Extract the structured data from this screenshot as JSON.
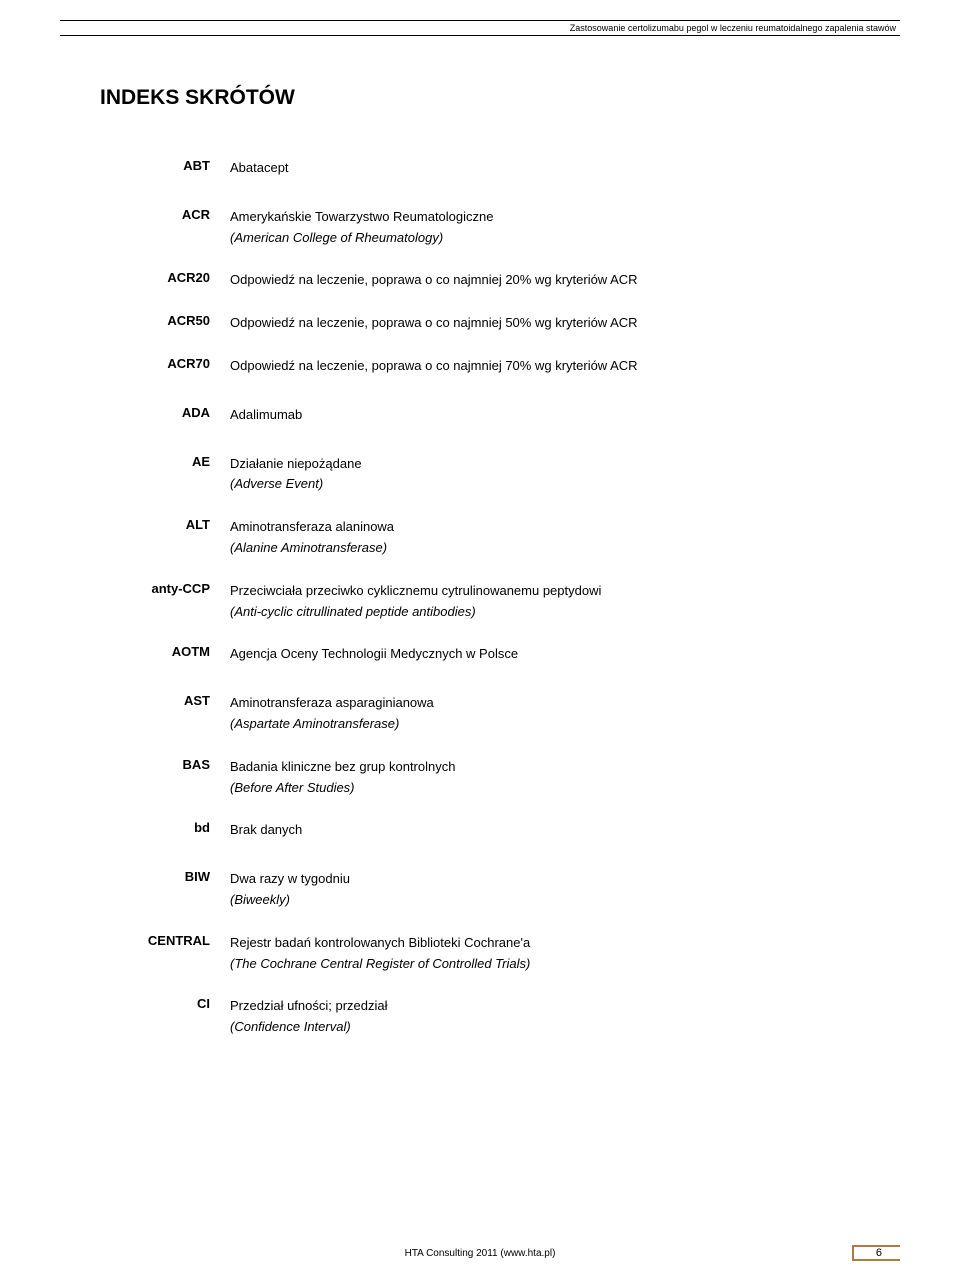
{
  "header": {
    "running_title": "Zastosowanie certolizumabu pegol w leczeniu reumatoidalnego zapalenia stawów"
  },
  "title": "INDEKS SKRÓTÓW",
  "entries": [
    {
      "abbr": "ABT",
      "def": "Abatacept",
      "spaced": false
    },
    {
      "abbr": "ACR",
      "def": "Amerykańskie Towarzystwo Reumatologiczne",
      "sub": "(American College of Rheumatology)",
      "spaced": true
    },
    {
      "abbr": "ACR20",
      "def": "Odpowiedź na leczenie, poprawa o co najmniej 20% wg kryteriów ACR",
      "spaced": false
    },
    {
      "abbr": "ACR50",
      "def": "Odpowiedź na leczenie, poprawa o co najmniej 50% wg kryteriów ACR",
      "spaced": false
    },
    {
      "abbr": "ACR70",
      "def": "Odpowiedź na leczenie, poprawa o co najmniej 70% wg kryteriów ACR",
      "spaced": false
    },
    {
      "abbr": "ADA",
      "def": "Adalimumab",
      "spaced": true
    },
    {
      "abbr": "AE",
      "def": "Działanie niepożądane",
      "sub": "(Adverse Event)",
      "spaced": true
    },
    {
      "abbr": "ALT",
      "def": "Aminotransferaza alaninowa",
      "sub": "(Alanine Aminotransferase)",
      "spaced": false
    },
    {
      "abbr": "anty-CCP",
      "def": "Przeciwciała przeciwko cyklicznemu cytrulinowanemu peptydowi",
      "sub": "(Anti-cyclic citrullinated peptide antibodies)",
      "spaced": false
    },
    {
      "abbr": "AOTM",
      "def": "Agencja Oceny Technologii Medycznych w Polsce",
      "spaced": false
    },
    {
      "abbr": "AST",
      "def": "Aminotransferaza asparaginianowa",
      "sub": "(Aspartate Aminotransferase)",
      "spaced": true
    },
    {
      "abbr": "BAS",
      "def": "Badania kliniczne bez grup kontrolnych",
      "sub": "(Before After Studies)",
      "spaced": false
    },
    {
      "abbr": "bd",
      "def": "Brak danych",
      "spaced": false
    },
    {
      "abbr": "BIW",
      "def": "Dwa razy w tygodniu",
      "sub": "(Biweekly)",
      "spaced": true
    },
    {
      "abbr": "CENTRAL",
      "def": "Rejestr badań kontrolowanych Biblioteki Cochrane'a",
      "sub": "(The Cochrane Central Register of Controlled Trials)",
      "spaced": false
    },
    {
      "abbr": "CI",
      "def": "Przedział ufności; przedział",
      "sub": "(Confidence Interval)",
      "spaced": false
    }
  ],
  "footer": {
    "text": "HTA Consulting 2011 (www.hta.pl)",
    "page": "6"
  }
}
